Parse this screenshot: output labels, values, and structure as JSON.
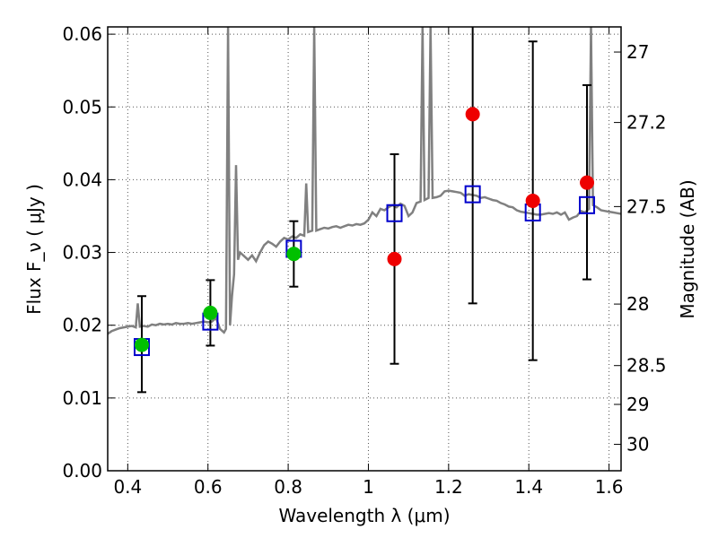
{
  "chart_data": {
    "type": "scatter",
    "xlabel": "Wavelength  λ (μm)",
    "ylabel": "Flux  F_ν  ( μJy )",
    "ylabel_right": "Magnitude (AB)",
    "xlim": [
      0.35,
      1.63
    ],
    "ylim": [
      0.0,
      0.061
    ],
    "x_ticks": [
      0.4,
      0.6,
      0.8,
      1.0,
      1.2,
      1.4,
      1.6
    ],
    "x_tick_labels": [
      "0.4",
      "0.6",
      "0.8",
      "1",
      "1.2",
      "1.4",
      "1.6"
    ],
    "y_ticks": [
      0.0,
      0.01,
      0.02,
      0.03,
      0.04,
      0.05,
      0.06
    ],
    "y_tick_labels": [
      "0.00",
      "0.01",
      "0.02",
      "0.03",
      "0.04",
      "0.05",
      "0.06"
    ],
    "right_ticks": [
      {
        "label": "27",
        "mag": 27.0
      },
      {
        "label": "27.2",
        "mag": 27.2
      },
      {
        "label": "27.5",
        "mag": 27.5
      },
      {
        "label": "28",
        "mag": 28.0
      },
      {
        "label": "28.5",
        "mag": 28.5
      },
      {
        "label": "29",
        "mag": 29.0
      },
      {
        "label": "30",
        "mag": 30.0
      }
    ],
    "grid": true,
    "colors": {
      "spectrum": "#808080",
      "model_box": "#0000cc",
      "observed_green": "#00c000",
      "observed_red": "#ee0000",
      "errorbar": "#000000"
    },
    "series": [
      {
        "kind": "line",
        "points": [
          [
            0.35,
            0.0188
          ],
          [
            0.36,
            0.0192
          ],
          [
            0.37,
            0.0194
          ],
          [
            0.38,
            0.0196
          ],
          [
            0.39,
            0.0197
          ],
          [
            0.4,
            0.0198
          ],
          [
            0.41,
            0.0199
          ],
          [
            0.42,
            0.0197
          ],
          [
            0.425,
            0.023
          ],
          [
            0.43,
            0.0198
          ],
          [
            0.44,
            0.0199
          ],
          [
            0.45,
            0.0198
          ],
          [
            0.46,
            0.0201
          ],
          [
            0.47,
            0.02
          ],
          [
            0.48,
            0.0202
          ],
          [
            0.49,
            0.0201
          ],
          [
            0.5,
            0.0202
          ],
          [
            0.51,
            0.0201
          ],
          [
            0.52,
            0.0203
          ],
          [
            0.53,
            0.0202
          ],
          [
            0.54,
            0.0202
          ],
          [
            0.55,
            0.0203
          ],
          [
            0.56,
            0.0202
          ],
          [
            0.57,
            0.0203
          ],
          [
            0.58,
            0.0204
          ],
          [
            0.59,
            0.0205
          ],
          [
            0.6,
            0.0204
          ],
          [
            0.61,
            0.0205
          ],
          [
            0.62,
            0.021
          ],
          [
            0.63,
            0.0195
          ],
          [
            0.64,
            0.019
          ],
          [
            0.645,
            0.0195
          ],
          [
            0.65,
            0.061
          ],
          [
            0.655,
            0.02
          ],
          [
            0.66,
            0.024
          ],
          [
            0.665,
            0.027
          ],
          [
            0.67,
            0.042
          ],
          [
            0.675,
            0.029
          ],
          [
            0.68,
            0.03
          ],
          [
            0.69,
            0.0295
          ],
          [
            0.7,
            0.029
          ],
          [
            0.71,
            0.0296
          ],
          [
            0.72,
            0.0288
          ],
          [
            0.73,
            0.03
          ],
          [
            0.74,
            0.031
          ],
          [
            0.75,
            0.0315
          ],
          [
            0.76,
            0.0312
          ],
          [
            0.77,
            0.0308
          ],
          [
            0.78,
            0.0315
          ],
          [
            0.79,
            0.032
          ],
          [
            0.8,
            0.0318
          ],
          [
            0.81,
            0.0322
          ],
          [
            0.82,
            0.032
          ],
          [
            0.83,
            0.0325
          ],
          [
            0.84,
            0.0323
          ],
          [
            0.845,
            0.0395
          ],
          [
            0.85,
            0.0328
          ],
          [
            0.86,
            0.033
          ],
          [
            0.865,
            0.061
          ],
          [
            0.87,
            0.033
          ],
          [
            0.88,
            0.0332
          ],
          [
            0.89,
            0.0334
          ],
          [
            0.9,
            0.0333
          ],
          [
            0.91,
            0.0335
          ],
          [
            0.92,
            0.0336
          ],
          [
            0.93,
            0.0334
          ],
          [
            0.94,
            0.0336
          ],
          [
            0.95,
            0.0338
          ],
          [
            0.96,
            0.0337
          ],
          [
            0.97,
            0.0339
          ],
          [
            0.98,
            0.0338
          ],
          [
            0.99,
            0.034
          ],
          [
            1.0,
            0.0345
          ],
          [
            1.01,
            0.0355
          ],
          [
            1.02,
            0.035
          ],
          [
            1.03,
            0.036
          ],
          [
            1.04,
            0.0358
          ],
          [
            1.05,
            0.0362
          ],
          [
            1.06,
            0.0365
          ],
          [
            1.07,
            0.0362
          ],
          [
            1.08,
            0.0367
          ],
          [
            1.09,
            0.0364
          ],
          [
            1.1,
            0.035
          ],
          [
            1.11,
            0.0355
          ],
          [
            1.12,
            0.0368
          ],
          [
            1.13,
            0.037
          ],
          [
            1.135,
            0.061
          ],
          [
            1.14,
            0.0372
          ],
          [
            1.15,
            0.0375
          ],
          [
            1.155,
            0.061
          ],
          [
            1.16,
            0.0375
          ],
          [
            1.17,
            0.0376
          ],
          [
            1.18,
            0.0378
          ],
          [
            1.19,
            0.0384
          ],
          [
            1.2,
            0.0385
          ],
          [
            1.21,
            0.0384
          ],
          [
            1.22,
            0.0383
          ],
          [
            1.23,
            0.0382
          ],
          [
            1.24,
            0.0378
          ],
          [
            1.25,
            0.038
          ],
          [
            1.26,
            0.0379
          ],
          [
            1.27,
            0.0378
          ],
          [
            1.28,
            0.0375
          ],
          [
            1.29,
            0.0376
          ],
          [
            1.3,
            0.0374
          ],
          [
            1.31,
            0.0372
          ],
          [
            1.32,
            0.0371
          ],
          [
            1.33,
            0.0368
          ],
          [
            1.34,
            0.0366
          ],
          [
            1.35,
            0.0363
          ],
          [
            1.36,
            0.0362
          ],
          [
            1.37,
            0.0358
          ],
          [
            1.38,
            0.0356
          ],
          [
            1.39,
            0.0355
          ],
          [
            1.4,
            0.0354
          ],
          [
            1.41,
            0.0353
          ],
          [
            1.42,
            0.0352
          ],
          [
            1.43,
            0.0352
          ],
          [
            1.44,
            0.0353
          ],
          [
            1.45,
            0.0354
          ],
          [
            1.46,
            0.0353
          ],
          [
            1.47,
            0.0355
          ],
          [
            1.48,
            0.0352
          ],
          [
            1.49,
            0.0355
          ],
          [
            1.5,
            0.0345
          ],
          [
            1.51,
            0.0348
          ],
          [
            1.52,
            0.035
          ],
          [
            1.53,
            0.0357
          ],
          [
            1.54,
            0.0355
          ],
          [
            1.55,
            0.036
          ],
          [
            1.555,
            0.061
          ],
          [
            1.56,
            0.0365
          ],
          [
            1.57,
            0.0362
          ],
          [
            1.58,
            0.0358
          ],
          [
            1.59,
            0.0357
          ],
          [
            1.6,
            0.0356
          ],
          [
            1.61,
            0.0355
          ],
          [
            1.62,
            0.0354
          ],
          [
            1.63,
            0.0353
          ]
        ]
      },
      {
        "kind": "open-square",
        "points": [
          [
            0.435,
            0.017
          ],
          [
            0.606,
            0.0205
          ],
          [
            0.814,
            0.0305
          ],
          [
            1.065,
            0.0354
          ],
          [
            1.26,
            0.038
          ],
          [
            1.41,
            0.0355
          ],
          [
            1.545,
            0.0365
          ]
        ]
      },
      {
        "kind": "filled-circle",
        "points": [
          {
            "x": 0.435,
            "y": 0.0173,
            "err_lo": 0.0108,
            "err_hi": 0.024,
            "color": "green"
          },
          {
            "x": 0.606,
            "y": 0.0217,
            "err_lo": 0.0172,
            "err_hi": 0.0262,
            "color": "green"
          },
          {
            "x": 0.814,
            "y": 0.0298,
            "err_lo": 0.0253,
            "err_hi": 0.0343,
            "color": "green"
          },
          {
            "x": 1.065,
            "y": 0.0291,
            "err_lo": 0.0147,
            "err_hi": 0.0435,
            "color": "red"
          },
          {
            "x": 1.26,
            "y": 0.049,
            "err_lo": 0.023,
            "err_hi": 0.0615,
            "color": "red"
          },
          {
            "x": 1.41,
            "y": 0.0371,
            "err_lo": 0.0152,
            "err_hi": 0.059,
            "color": "red"
          },
          {
            "x": 1.545,
            "y": 0.0396,
            "err_lo": 0.0263,
            "err_hi": 0.053,
            "color": "red"
          }
        ]
      }
    ]
  }
}
